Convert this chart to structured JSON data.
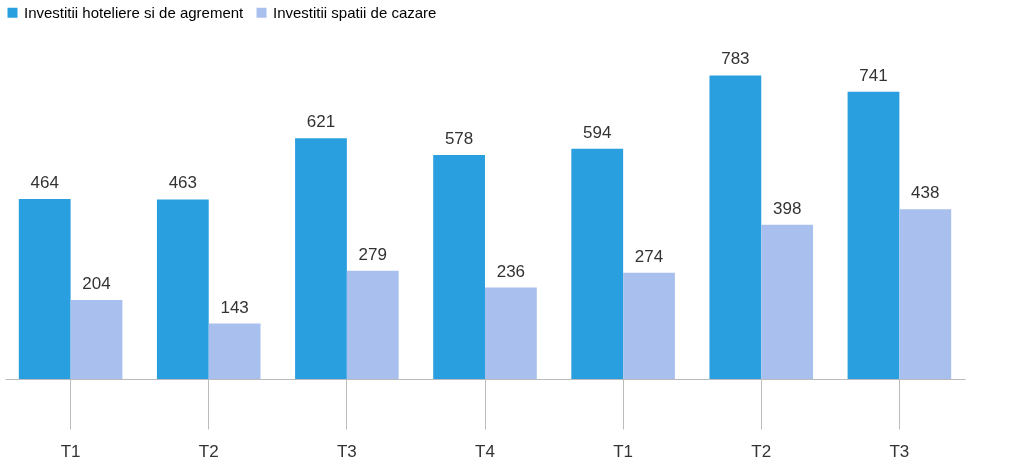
{
  "chart_data": {
    "type": "bar",
    "categories": [
      "T1",
      "T2",
      "T3",
      "T4",
      "T1",
      "T2",
      "T3"
    ],
    "series": [
      {
        "name": "Investitii hoteliere si de agrement",
        "color": "#2a9fe0",
        "values": [
          464,
          463,
          621,
          578,
          594,
          783,
          741
        ]
      },
      {
        "name": "Investitii spatii de cazare",
        "color": "#a9c0ee",
        "values": [
          204,
          143,
          279,
          236,
          274,
          398,
          438
        ]
      }
    ],
    "data_labels": true,
    "legend": "top",
    "grid": false
  }
}
